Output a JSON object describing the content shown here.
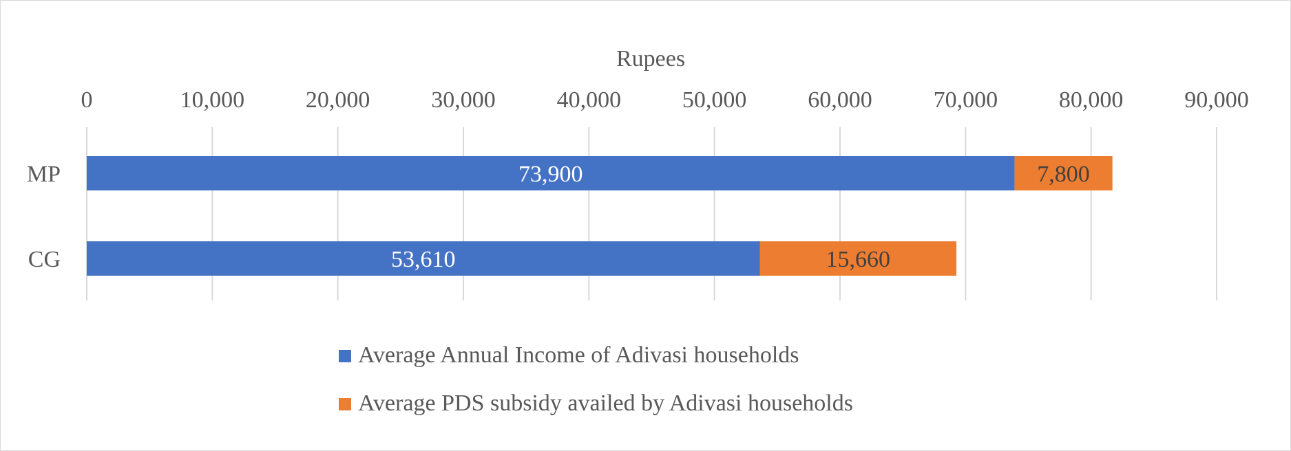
{
  "chart_data": {
    "type": "bar",
    "orientation": "horizontal",
    "stacked": true,
    "xlabel": "Rupees",
    "xlim": [
      0,
      90000
    ],
    "xticks": [
      0,
      10000,
      20000,
      30000,
      40000,
      50000,
      60000,
      70000,
      80000,
      90000
    ],
    "xtick_labels": [
      "0",
      "10,000",
      "20,000",
      "30,000",
      "40,000",
      "50,000",
      "60,000",
      "70,000",
      "80,000",
      "90,000"
    ],
    "x_axis_position": "top",
    "grid": "vertical",
    "categories": [
      "MP",
      "CG"
    ],
    "series": [
      {
        "name": "Average Annual Income of Adivasi households",
        "color": "#4472C4",
        "values": [
          73900,
          53610
        ],
        "labels": [
          "73,900",
          "53,610"
        ],
        "label_color": "#ffffff"
      },
      {
        "name": "Average PDS subsidy availed by Adivasi households",
        "color": "#ED7D31",
        "values": [
          7800,
          15660
        ],
        "labels": [
          "7,800",
          "15,660"
        ],
        "label_color": "#404040"
      }
    ],
    "legend_position": "bottom"
  }
}
